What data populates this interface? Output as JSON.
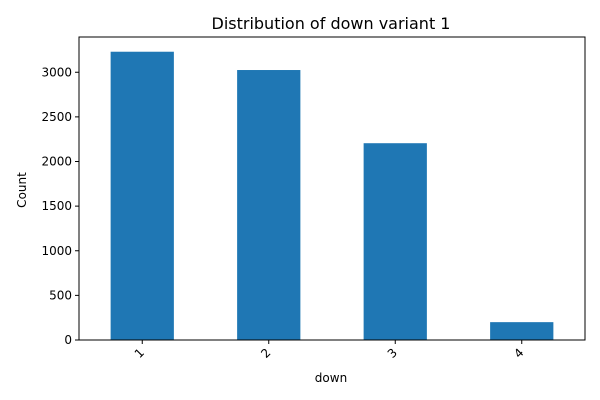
{
  "chart_data": {
    "type": "bar",
    "title": "Distribution of down variant 1",
    "xlabel": "down",
    "ylabel": "Count",
    "categories": [
      "1",
      "2",
      "3",
      "4"
    ],
    "values": [
      3230,
      3025,
      2205,
      200
    ],
    "ylim": [
      0,
      3395
    ],
    "yticks": [
      0,
      500,
      1000,
      1500,
      2000,
      2500,
      3000
    ],
    "x_tick_rotation_deg": 45,
    "bar_color": "#1f77b4",
    "grid": false,
    "legend": "none"
  }
}
